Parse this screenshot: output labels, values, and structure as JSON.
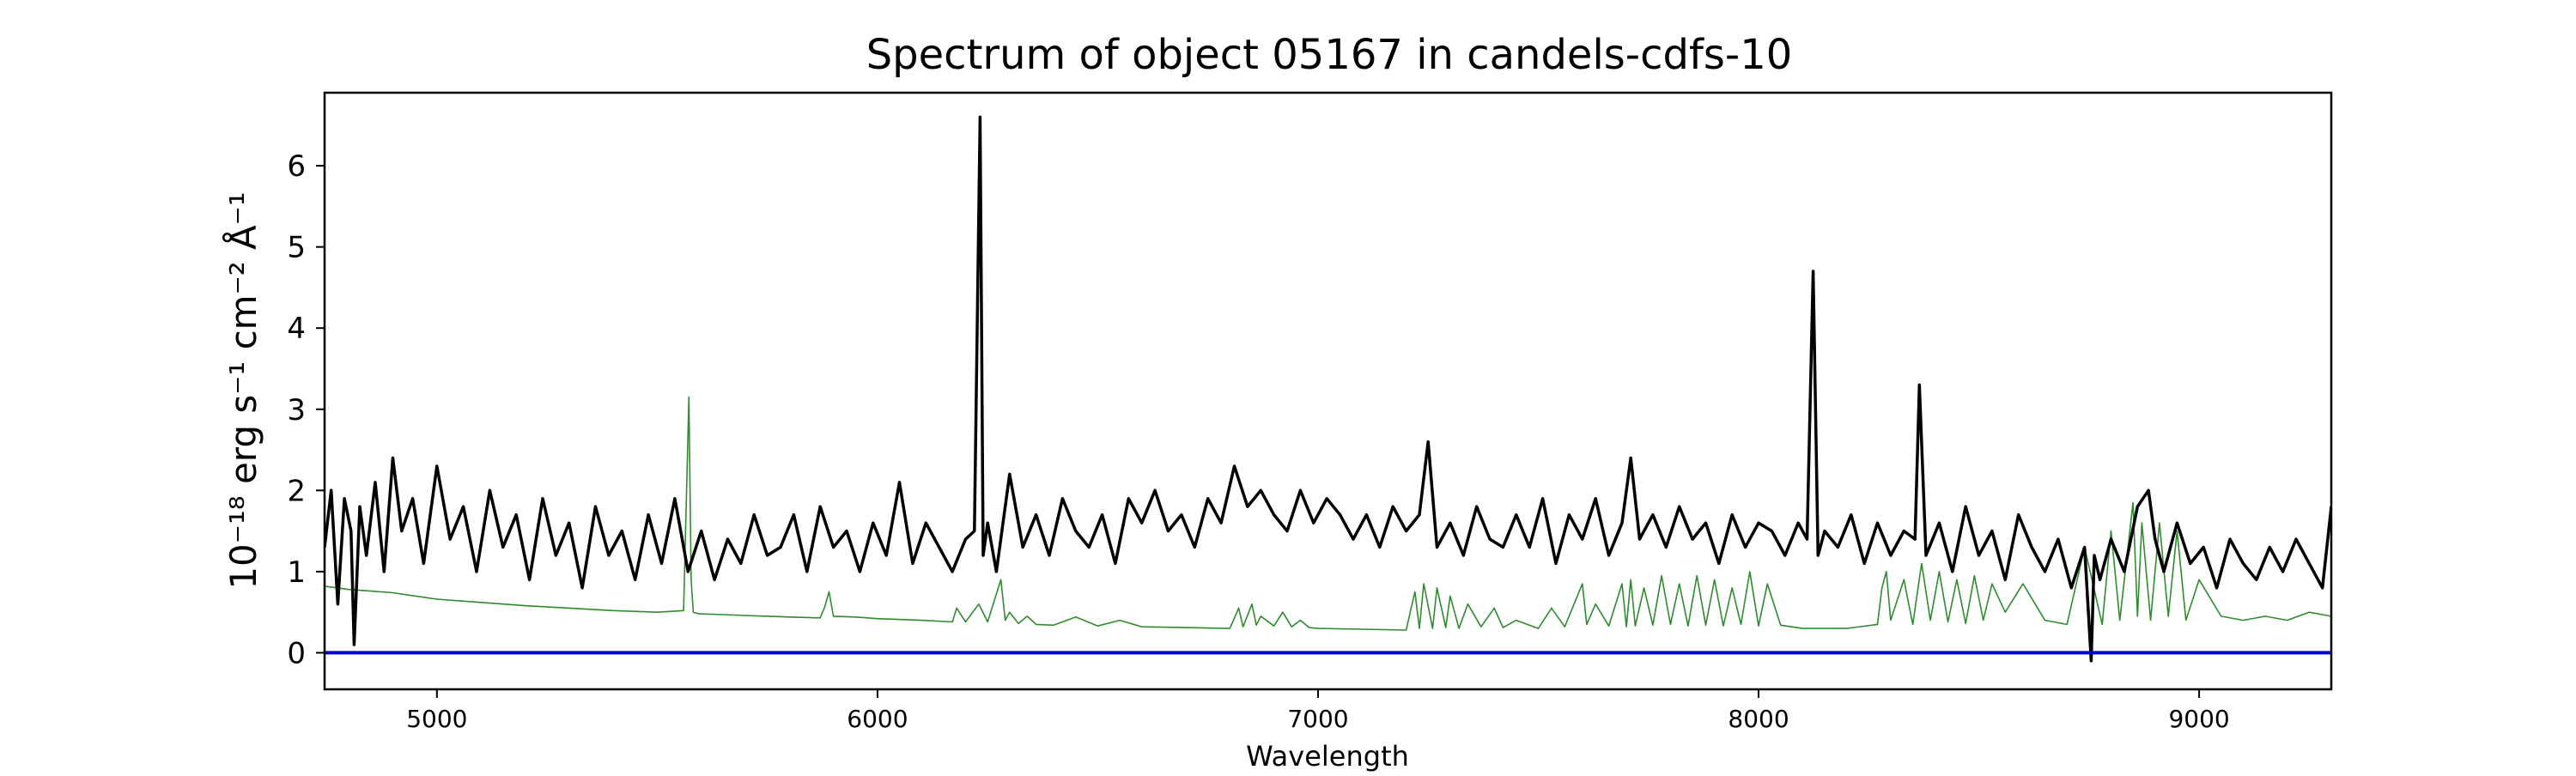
{
  "chart_data": {
    "type": "line",
    "title": "Spectrum of object 05167 in candels-cdfs-10",
    "xlabel": "Wavelength",
    "ylabel": "10⁻¹⁸ erg s⁻¹ cm⁻² Å⁻¹",
    "xlim": [
      4745,
      9300
    ],
    "ylim": [
      -0.45,
      6.9
    ],
    "xticks": [
      5000,
      6000,
      7000,
      8000,
      9000
    ],
    "xtick_labels": [
      "5000",
      "6000",
      "7000",
      "8000",
      "9000"
    ],
    "yticks": [
      0,
      1,
      2,
      3,
      4,
      5,
      6
    ],
    "ytick_labels": [
      "0",
      "1",
      "2",
      "3",
      "4",
      "5",
      "6"
    ],
    "grid": false,
    "legend": false,
    "series": [
      {
        "role": "flux",
        "color": "#000000",
        "x": [
          4745,
          4760,
          4775,
          4790,
          4805,
          4812,
          4825,
          4840,
          4860,
          4880,
          4900,
          4920,
          4945,
          4970,
          5000,
          5030,
          5060,
          5090,
          5120,
          5150,
          5180,
          5210,
          5240,
          5270,
          5300,
          5330,
          5360,
          5390,
          5420,
          5450,
          5480,
          5510,
          5540,
          5570,
          5600,
          5630,
          5660,
          5690,
          5720,
          5750,
          5780,
          5810,
          5840,
          5870,
          5900,
          5930,
          5960,
          5990,
          6020,
          6050,
          6080,
          6110,
          6140,
          6170,
          6200,
          6220,
          6233,
          6240,
          6250,
          6270,
          6300,
          6330,
          6360,
          6390,
          6420,
          6450,
          6480,
          6510,
          6540,
          6570,
          6600,
          6630,
          6660,
          6690,
          6720,
          6750,
          6780,
          6810,
          6840,
          6870,
          6900,
          6930,
          6960,
          6990,
          7020,
          7050,
          7080,
          7110,
          7140,
          7170,
          7200,
          7230,
          7250,
          7270,
          7300,
          7330,
          7360,
          7390,
          7420,
          7450,
          7480,
          7510,
          7540,
          7570,
          7600,
          7630,
          7660,
          7690,
          7710,
          7730,
          7760,
          7790,
          7820,
          7850,
          7880,
          7910,
          7940,
          7970,
          8000,
          8030,
          8060,
          8090,
          8110,
          8124,
          8135,
          8150,
          8180,
          8210,
          8240,
          8270,
          8300,
          8330,
          8355,
          8365,
          8380,
          8410,
          8440,
          8470,
          8500,
          8530,
          8560,
          8590,
          8620,
          8650,
          8680,
          8710,
          8740,
          8755,
          8762,
          8775,
          8800,
          8830,
          8860,
          8885,
          8900,
          8920,
          8950,
          8980,
          9010,
          9040,
          9070,
          9100,
          9130,
          9160,
          9190,
          9220,
          9250,
          9280,
          9300
        ],
        "y": [
          1.3,
          2.0,
          0.6,
          1.9,
          1.5,
          0.1,
          1.8,
          1.2,
          2.1,
          1.0,
          2.4,
          1.5,
          1.9,
          1.1,
          2.3,
          1.4,
          1.8,
          1.0,
          2.0,
          1.3,
          1.7,
          0.9,
          1.9,
          1.2,
          1.6,
          0.8,
          1.8,
          1.2,
          1.5,
          0.9,
          1.7,
          1.1,
          1.9,
          1.0,
          1.5,
          0.9,
          1.4,
          1.1,
          1.7,
          1.2,
          1.3,
          1.7,
          1.0,
          1.8,
          1.3,
          1.5,
          1.0,
          1.6,
          1.2,
          2.1,
          1.1,
          1.6,
          1.3,
          1.0,
          1.4,
          1.5,
          6.6,
          1.2,
          1.6,
          1.0,
          2.2,
          1.3,
          1.7,
          1.2,
          1.9,
          1.5,
          1.3,
          1.7,
          1.1,
          1.9,
          1.6,
          2.0,
          1.5,
          1.7,
          1.3,
          1.9,
          1.6,
          2.3,
          1.8,
          2.0,
          1.7,
          1.5,
          2.0,
          1.6,
          1.9,
          1.7,
          1.4,
          1.7,
          1.3,
          1.8,
          1.5,
          1.7,
          2.6,
          1.3,
          1.6,
          1.2,
          1.8,
          1.4,
          1.3,
          1.7,
          1.3,
          1.9,
          1.1,
          1.7,
          1.4,
          1.9,
          1.2,
          1.6,
          2.4,
          1.4,
          1.7,
          1.3,
          1.8,
          1.4,
          1.6,
          1.1,
          1.7,
          1.3,
          1.6,
          1.5,
          1.2,
          1.6,
          1.4,
          4.7,
          1.2,
          1.5,
          1.3,
          1.7,
          1.1,
          1.6,
          1.2,
          1.5,
          1.4,
          3.3,
          1.2,
          1.6,
          1.0,
          1.8,
          1.2,
          1.5,
          0.9,
          1.7,
          1.3,
          1.0,
          1.4,
          0.8,
          1.3,
          -0.1,
          1.2,
          0.9,
          1.4,
          1.0,
          1.8,
          2.0,
          1.4,
          1.0,
          1.6,
          1.1,
          1.3,
          0.8,
          1.4,
          1.1,
          0.9,
          1.3,
          1.0,
          1.4,
          1.1,
          0.8,
          1.8
        ]
      },
      {
        "role": "model",
        "color": "#2e8b2e",
        "x": [
          4745,
          4800,
          4850,
          4900,
          4950,
          5000,
          5100,
          5200,
          5300,
          5400,
          5500,
          5560,
          5572,
          5577,
          5582,
          5595,
          5650,
          5700,
          5800,
          5870,
          5880,
          5890,
          5900,
          5950,
          6000,
          6100,
          6170,
          6180,
          6200,
          6230,
          6250,
          6280,
          6290,
          6300,
          6320,
          6340,
          6360,
          6400,
          6450,
          6500,
          6550,
          6600,
          6700,
          6800,
          6820,
          6830,
          6850,
          6860,
          6870,
          6900,
          6920,
          6940,
          6960,
          6980,
          7000,
          7100,
          7200,
          7220,
          7230,
          7240,
          7260,
          7270,
          7290,
          7300,
          7320,
          7340,
          7370,
          7400,
          7420,
          7450,
          7500,
          7530,
          7560,
          7600,
          7610,
          7630,
          7660,
          7690,
          7700,
          7710,
          7720,
          7740,
          7760,
          7780,
          7800,
          7820,
          7840,
          7860,
          7880,
          7900,
          7920,
          7940,
          7960,
          7980,
          8000,
          8020,
          8050,
          8100,
          8200,
          8270,
          8280,
          8290,
          8300,
          8330,
          8350,
          8370,
          8390,
          8410,
          8430,
          8450,
          8470,
          8490,
          8510,
          8530,
          8560,
          8600,
          8650,
          8700,
          8740,
          8780,
          8800,
          8820,
          8850,
          8860,
          8870,
          8890,
          8910,
          8930,
          8950,
          8970,
          9000,
          9050,
          9100,
          9150,
          9200,
          9250,
          9300
        ],
        "y": [
          0.82,
          0.78,
          0.76,
          0.74,
          0.7,
          0.66,
          0.62,
          0.58,
          0.55,
          0.52,
          0.5,
          0.52,
          3.15,
          0.9,
          0.5,
          0.48,
          0.47,
          0.46,
          0.44,
          0.43,
          0.56,
          0.75,
          0.45,
          0.44,
          0.42,
          0.4,
          0.38,
          0.55,
          0.38,
          0.6,
          0.38,
          0.9,
          0.4,
          0.5,
          0.36,
          0.45,
          0.35,
          0.34,
          0.44,
          0.33,
          0.4,
          0.32,
          0.31,
          0.3,
          0.55,
          0.32,
          0.6,
          0.34,
          0.45,
          0.33,
          0.5,
          0.32,
          0.4,
          0.31,
          0.3,
          0.29,
          0.28,
          0.75,
          0.3,
          0.85,
          0.3,
          0.8,
          0.31,
          0.7,
          0.3,
          0.6,
          0.32,
          0.55,
          0.31,
          0.4,
          0.3,
          0.55,
          0.32,
          0.85,
          0.35,
          0.6,
          0.33,
          0.85,
          0.32,
          0.9,
          0.33,
          0.8,
          0.34,
          0.95,
          0.35,
          0.85,
          0.33,
          0.95,
          0.34,
          0.9,
          0.33,
          0.8,
          0.35,
          1.0,
          0.33,
          0.85,
          0.34,
          0.3,
          0.3,
          0.35,
          0.8,
          1.0,
          0.4,
          0.9,
          0.35,
          1.1,
          0.4,
          1.0,
          0.38,
          0.9,
          0.36,
          0.95,
          0.4,
          0.85,
          0.5,
          0.85,
          0.4,
          0.35,
          1.3,
          0.35,
          1.5,
          0.4,
          1.85,
          0.45,
          1.6,
          0.4,
          1.6,
          0.45,
          1.5,
          0.4,
          0.9,
          0.45,
          0.4,
          0.45,
          0.4,
          0.5,
          0.45
        ]
      },
      {
        "role": "zero-line",
        "color": "#0000cc",
        "x": [
          4745,
          9300
        ],
        "y": [
          0,
          0
        ]
      }
    ]
  }
}
